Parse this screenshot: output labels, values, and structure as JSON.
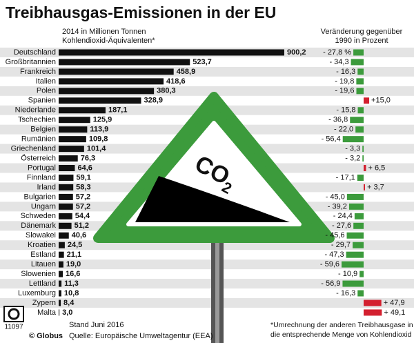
{
  "chart_data": [
    {
      "type": "hbar",
      "title": "Treibhausgas-Emissionen in der EU",
      "subtitle": [
        "2014 in Millionen Tonnen",
        "Kohlendioxid-Äquivalenten*"
      ],
      "categories": [
        "Deutschland",
        "Großbritannien",
        "Frankreich",
        "Italien",
        "Polen",
        "Spanien",
        "Niederlande",
        "Tschechien",
        "Belgien",
        "Rumänien",
        "Griechenland",
        "Österreich",
        "Portugal",
        "Finnland",
        "Irland",
        "Bulgarien",
        "Ungarn",
        "Schweden",
        "Dänemark",
        "Slowakei",
        "Kroatien",
        "Estland",
        "Litauen",
        "Slowenien",
        "Lettland",
        "Luxemburg",
        "Zypern",
        "Malta"
      ],
      "values": [
        900.2,
        523.7,
        458.9,
        418.6,
        380.3,
        328.9,
        187.1,
        125.9,
        113.9,
        109.8,
        101.4,
        76.3,
        64.6,
        59.1,
        58.3,
        57.2,
        57.2,
        54.4,
        51.2,
        40.6,
        24.5,
        21.1,
        19.0,
        16.6,
        11.3,
        10.8,
        8.4,
        3.0
      ],
      "value_labels": [
        "900,2",
        "523,7",
        "458,9",
        "418,6",
        "380,3",
        "328,9",
        "187,1",
        "125,9",
        "113,9",
        "109,8",
        "101,4",
        "76,3",
        "64,6",
        "59,1",
        "58,3",
        "57,2",
        "57,2",
        "54,4",
        "51,2",
        "40,6",
        "24,5",
        "21,1",
        "19,0",
        "16,6",
        "11,3",
        "10,8",
        "8,4",
        "3,0"
      ],
      "color": "#111111"
    },
    {
      "type": "change",
      "subtitle": [
        "Veränderung gegenüber",
        "1990 in Prozent"
      ],
      "values": [
        -27.8,
        -34.3,
        -16.3,
        -19.8,
        -19.6,
        15.0,
        -15.8,
        -36.8,
        -22.0,
        -56.4,
        -3.3,
        -3.2,
        6.5,
        -17.1,
        3.7,
        -45.0,
        -39.2,
        -24.4,
        -27.6,
        -45.6,
        -29.7,
        -47.3,
        -59.6,
        -10.9,
        -56.9,
        -16.3,
        47.9,
        49.1
      ],
      "value_labels": [
        "- 27,8 %",
        "- 34,3",
        "- 16,3",
        "- 19,8",
        "- 19,6",
        "+15,0",
        "- 15,8",
        "- 36,8",
        "- 22,0",
        "- 56,4",
        "- 3,3",
        "- 3,2",
        "+ 6,5",
        "- 17,1",
        "+ 3,7",
        "- 45,0",
        "- 39,2",
        "- 24,4",
        "- 27,6",
        "- 45,6",
        "- 29,7",
        "- 47,3",
        "- 59,6",
        "- 10,9",
        "- 56,9",
        "- 16,3",
        "+ 47,9",
        "+ 49,1"
      ],
      "color_negative": "#3c9b3c",
      "color_positive": "#d3202f"
    }
  ],
  "sign": {
    "text": "CO",
    "subscript": "2"
  },
  "footer": {
    "date": "Stand Juni 2016",
    "source": "Quelle: Europäische Umweltagentur (EEA)",
    "brand": "© Globus",
    "number": "11097",
    "footnote": [
      "*Umrechnung der anderen Treibhausgase in",
      "die entsprechende Menge von Kohlendioxid"
    ]
  }
}
